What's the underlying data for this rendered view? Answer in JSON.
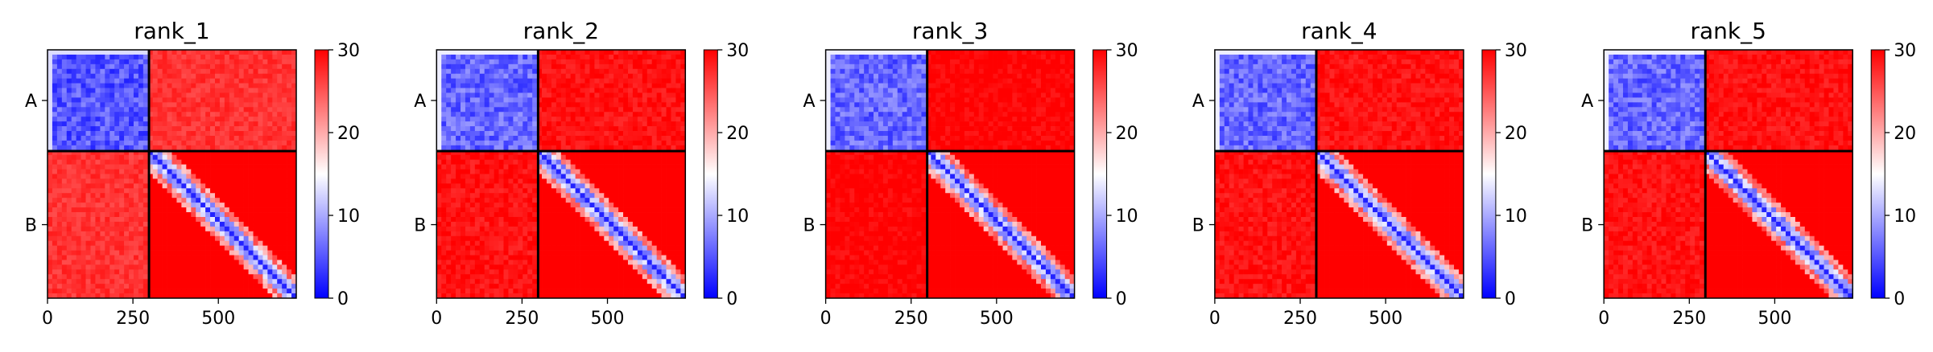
{
  "figure": {
    "colors": {
      "low": "#0000ff",
      "mid": "#ffffff",
      "high": "#ff0000",
      "frame": "#000000",
      "chain_boundary": "#000000"
    },
    "colormap": "bwr"
  },
  "chart_data": [
    {
      "type": "heatmap",
      "title": "rank_1",
      "chain_labels": [
        "A",
        "B"
      ],
      "chain_break": 297,
      "length": 728,
      "xticks": [
        0,
        250,
        500
      ],
      "xlim": [
        0,
        728
      ],
      "colorbar": {
        "min": 0,
        "max": 30,
        "ticks": [
          0,
          10,
          20,
          30
        ]
      },
      "values": {
        "A_intra": 5,
        "B_intra_diag": 2,
        "B_intra_far": 30,
        "inter": 27
      }
    },
    {
      "type": "heatmap",
      "title": "rank_2",
      "chain_labels": [
        "A",
        "B"
      ],
      "chain_break": 297,
      "length": 728,
      "xticks": [
        0,
        250,
        500
      ],
      "xlim": [
        0,
        728
      ],
      "colorbar": {
        "min": 0,
        "max": 30,
        "ticks": [
          0,
          10,
          20,
          30
        ]
      },
      "values": {
        "A_intra": 6,
        "B_intra_diag": 2,
        "B_intra_far": 30,
        "inter": 29
      }
    },
    {
      "type": "heatmap",
      "title": "rank_3",
      "chain_labels": [
        "A",
        "B"
      ],
      "chain_break": 297,
      "length": 728,
      "xticks": [
        0,
        250,
        500
      ],
      "xlim": [
        0,
        728
      ],
      "colorbar": {
        "min": 0,
        "max": 30,
        "ticks": [
          0,
          10,
          20,
          30
        ]
      },
      "values": {
        "A_intra": 6,
        "B_intra_diag": 2,
        "B_intra_far": 30,
        "inter": 30
      }
    },
    {
      "type": "heatmap",
      "title": "rank_4",
      "chain_labels": [
        "A",
        "B"
      ],
      "chain_break": 297,
      "length": 728,
      "xticks": [
        0,
        250,
        500
      ],
      "xlim": [
        0,
        728
      ],
      "colorbar": {
        "min": 0,
        "max": 30,
        "ticks": [
          0,
          10,
          20,
          30
        ]
      },
      "values": {
        "A_intra": 6,
        "B_intra_diag": 2,
        "B_intra_far": 30,
        "inter": 29
      }
    },
    {
      "type": "heatmap",
      "title": "rank_5",
      "chain_labels": [
        "A",
        "B"
      ],
      "chain_break": 297,
      "length": 728,
      "xticks": [
        0,
        250,
        500
      ],
      "xlim": [
        0,
        728
      ],
      "colorbar": {
        "min": 0,
        "max": 30,
        "ticks": [
          0,
          10,
          20,
          30
        ]
      },
      "values": {
        "A_intra": 6,
        "B_intra_diag": 2,
        "B_intra_far": 30,
        "inter": 29
      }
    }
  ]
}
